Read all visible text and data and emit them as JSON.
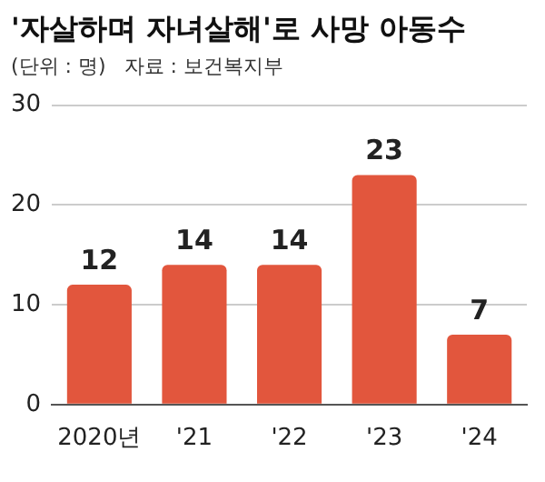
{
  "chart_data": {
    "type": "bar",
    "title": "'자살하며 자녀살해'로 사망 아동수",
    "subtitle": "(단위 : 명)",
    "annotations": [
      "자료 : 보건복지부"
    ],
    "categories": [
      "2020년",
      "'21",
      "'22",
      "'23",
      "'24"
    ],
    "values": [
      12,
      14,
      14,
      23,
      7
    ],
    "color": "#e2563d",
    "ylim": [
      0,
      30
    ],
    "yticks": [
      0,
      10,
      20,
      30
    ],
    "grid": "y",
    "data_labels": true
  }
}
